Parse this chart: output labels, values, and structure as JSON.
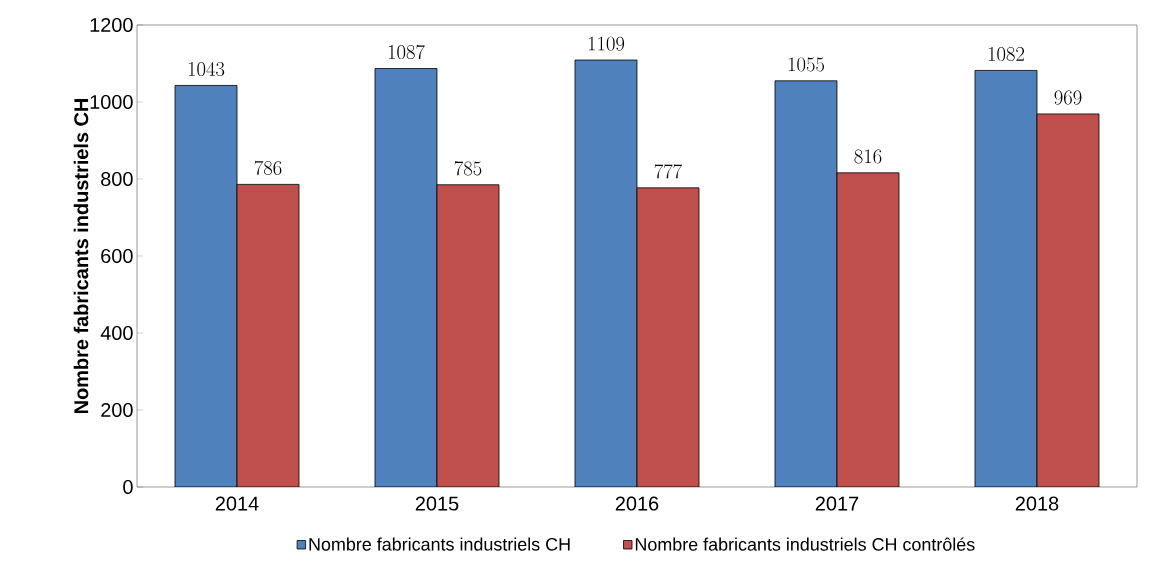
{
  "chart_data": {
    "type": "bar",
    "ylabel": "Nombre fabricants industriels CH",
    "categories": [
      "2014",
      "2015",
      "2016",
      "2017",
      "2018"
    ],
    "series": [
      {
        "name": "Nombre fabricants industriels CH",
        "color": "#4f81bd",
        "values": [
          1043,
          1087,
          1109,
          1055,
          1082
        ]
      },
      {
        "name": "Nombre fabricants industriels CH contrôlés",
        "color": "#c0504d",
        "values": [
          786,
          785,
          777,
          816,
          969
        ]
      }
    ],
    "ylim": [
      0,
      1200
    ],
    "yticks": [
      0,
      200,
      400,
      600,
      800,
      1000,
      1200
    ],
    "data_labels": true,
    "legend": "bottom",
    "grid": false
  }
}
